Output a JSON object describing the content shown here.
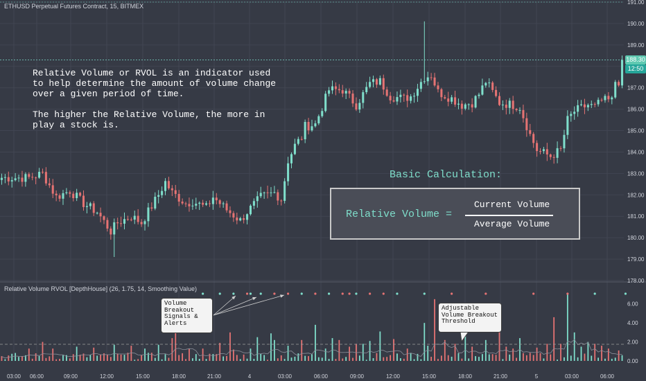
{
  "chart_title": "ETHUSD Perpetual Futures Contract, 15, BITMEX",
  "indicator_title": "Relative Volume RVOL [DepthHouse] (26, 1.75, 14, Smoothing Value)",
  "annotation_text": "Relative Volume or RVOL is an indicator used\nto help determine the amount of volume change\nover a given period of time.\n\nThe higher the Relative Volume, the more in\nplay a stock is.",
  "calculation": {
    "title": "Basic Calculation:",
    "lhs": "Relative Volume =",
    "numerator": "Current Volume",
    "denominator": "Average Volume"
  },
  "callouts": {
    "signals": "Volume\nBreakout\nSignals &\nAlerts",
    "threshold": "Adjustable\nVolume Breakout\nThreshold"
  },
  "price_tag": {
    "price": "188.30",
    "countdown": "12:50"
  },
  "colors": {
    "background": "#363a45",
    "bull": "#7fdecb",
    "bear": "#e57373",
    "grid": "#414552",
    "threshold_line": "#9e9e9e"
  },
  "chart_data": [
    {
      "type": "candlestick",
      "title": "ETHUSD Perpetual Futures Contract, 15, BITMEX",
      "xlabel": "",
      "ylabel": "",
      "ylim": [
        178.0,
        191.0
      ],
      "yticks": [
        "191.00",
        "190.00",
        "189.00",
        "188.00",
        "187.00",
        "186.00",
        "185.00",
        "184.00",
        "183.00",
        "182.00",
        "181.00",
        "180.00",
        "179.00",
        "178.00"
      ],
      "xticks": [
        "03:00",
        "06:00",
        "09:00",
        "12:00",
        "15:00",
        "18:00",
        "21:00",
        "4",
        "03:00",
        "06:00",
        "09:00",
        "12:00",
        "15:00",
        "18:00",
        "21:00",
        "5",
        "03:00",
        "06:00"
      ],
      "grid": true,
      "last_price": 188.3,
      "close_path": [
        [
          0,
          182.8
        ],
        [
          8,
          182.8
        ],
        [
          12,
          183.0
        ],
        [
          16,
          181.9
        ],
        [
          20,
          182.2
        ],
        [
          24,
          181.6
        ],
        [
          28,
          181.2
        ],
        [
          32,
          180.3
        ],
        [
          34,
          180.7
        ],
        [
          38,
          181.0
        ],
        [
          41,
          180.7
        ],
        [
          46,
          182.0
        ],
        [
          48,
          182.6
        ],
        [
          50,
          182.1
        ],
        [
          54,
          181.6
        ],
        [
          56,
          181.7
        ],
        [
          60,
          181.4
        ],
        [
          62,
          181.9
        ],
        [
          66,
          181.3
        ],
        [
          70,
          180.8
        ],
        [
          72,
          181.2
        ],
        [
          76,
          181.9
        ],
        [
          80,
          182.1
        ],
        [
          82,
          181.8
        ],
        [
          84,
          183.6
        ],
        [
          86,
          184.3
        ],
        [
          88,
          184.7
        ],
        [
          89,
          185.2
        ],
        [
          92,
          185.3
        ],
        [
          96,
          186.9
        ],
        [
          100,
          186.9
        ],
        [
          104,
          186.2
        ],
        [
          108,
          187.2
        ],
        [
          111,
          187.3
        ],
        [
          114,
          186.6
        ],
        [
          118,
          186.5
        ],
        [
          120,
          186.6
        ],
        [
          124,
          187.5
        ],
        [
          126,
          187.6
        ],
        [
          128,
          186.8
        ],
        [
          132,
          186.5
        ],
        [
          135,
          186.2
        ],
        [
          138,
          186.3
        ],
        [
          140,
          186.7
        ],
        [
          142,
          187.3
        ],
        [
          144,
          186.8
        ],
        [
          146,
          186.3
        ],
        [
          150,
          186.2
        ],
        [
          152,
          186.1
        ],
        [
          155,
          184.8
        ],
        [
          157,
          184.1
        ],
        [
          161,
          183.8
        ],
        [
          164,
          184.1
        ],
        [
          166,
          185.5
        ],
        [
          168,
          185.9
        ],
        [
          172,
          186.2
        ],
        [
          174,
          186.1
        ],
        [
          176,
          186.4
        ],
        [
          179,
          186.4
        ],
        [
          180,
          187.3
        ]
      ]
    },
    {
      "type": "bar",
      "title": "Relative Volume RVOL [DepthHouse] (26, 1.75, 14, Smoothing Value)",
      "ylim": [
        0,
        7
      ],
      "yticks": [
        "6.00",
        "4.00",
        "2.00",
        "0.00"
      ],
      "threshold": 1.75,
      "spikes": [
        [
          8,
          1.3
        ],
        [
          12,
          2.0
        ],
        [
          15,
          1.3
        ],
        [
          22,
          1.5
        ],
        [
          27,
          1.4
        ],
        [
          33,
          1.7
        ],
        [
          38,
          1.6
        ],
        [
          42,
          1.3
        ],
        [
          46,
          1.7
        ],
        [
          50,
          2.4
        ],
        [
          51,
          4.4
        ],
        [
          55,
          1.3
        ],
        [
          59,
          1.3
        ],
        [
          64,
          1.9
        ],
        [
          67,
          3.0
        ],
        [
          68,
          1.2
        ],
        [
          73,
          1.3
        ],
        [
          75,
          2.5
        ],
        [
          79,
          2.9
        ],
        [
          80,
          2.2
        ],
        [
          84,
          1.6
        ],
        [
          88,
          2.2
        ],
        [
          92,
          3.8
        ],
        [
          95,
          1.3
        ],
        [
          97,
          2.4
        ],
        [
          99,
          2.2
        ],
        [
          102,
          1.5
        ],
        [
          104,
          1.8
        ],
        [
          106,
          1.8
        ],
        [
          108,
          2.1
        ],
        [
          111,
          3.1
        ],
        [
          115,
          2.3
        ],
        [
          119,
          1.3
        ],
        [
          124,
          4.0
        ],
        [
          125,
          1.6
        ],
        [
          127,
          6.5
        ],
        [
          130,
          2.2
        ],
        [
          133,
          1.8
        ],
        [
          136,
          2.9
        ],
        [
          138,
          1.5
        ],
        [
          142,
          2.2
        ],
        [
          146,
          3.1
        ],
        [
          148,
          1.5
        ],
        [
          150,
          1.3
        ],
        [
          152,
          2.4
        ],
        [
          157,
          1.4
        ],
        [
          160,
          1.8
        ],
        [
          162,
          4.6
        ],
        [
          164,
          1.8
        ],
        [
          166,
          7.0
        ],
        [
          168,
          3.0
        ],
        [
          170,
          1.5
        ],
        [
          172,
          2.0
        ],
        [
          174,
          1.8
        ],
        [
          176,
          1.6
        ],
        [
          178,
          1.3
        ],
        [
          181,
          1.1
        ]
      ],
      "signal_dots": [
        [
          59,
          "bull"
        ],
        [
          64,
          "bull"
        ],
        [
          68,
          "bull"
        ],
        [
          72,
          "bear"
        ],
        [
          73,
          "bull"
        ],
        [
          76,
          "bull"
        ],
        [
          80,
          "bear"
        ],
        [
          84,
          "bear"
        ],
        [
          88,
          "bull"
        ],
        [
          92,
          "bear"
        ],
        [
          96,
          "bull"
        ],
        [
          100,
          "bear"
        ],
        [
          102,
          "bear"
        ],
        [
          104,
          "bull"
        ],
        [
          108,
          "bear"
        ],
        [
          112,
          "bear"
        ],
        [
          116,
          "bull"
        ],
        [
          124,
          "bull"
        ],
        [
          132,
          "bear"
        ],
        [
          142,
          "bear"
        ],
        [
          156,
          "bear"
        ],
        [
          166,
          "bear"
        ],
        [
          174,
          "bull"
        ],
        [
          183,
          "bull"
        ]
      ]
    }
  ]
}
